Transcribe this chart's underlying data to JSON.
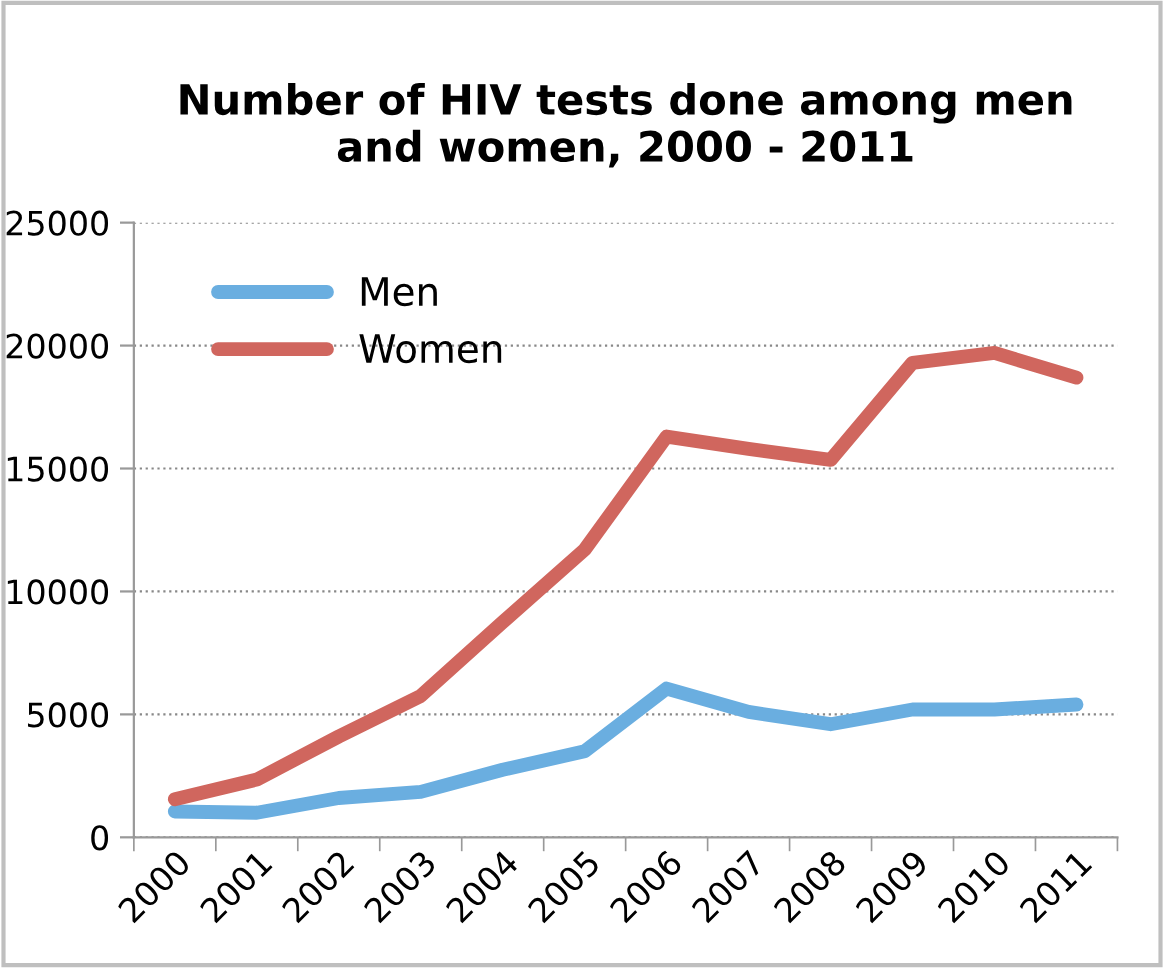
{
  "chart_data": {
    "type": "line",
    "title": "Number of HIV tests done among men\nand women, 2000 - 2011",
    "categories": [
      "2000",
      "2001",
      "2002",
      "2003",
      "2004",
      "2005",
      "2006",
      "2007",
      "2008",
      "2009",
      "2010",
      "2011"
    ],
    "series": [
      {
        "name": "Men",
        "color": "#6aaee0",
        "values": [
          1050,
          1000,
          1600,
          1850,
          2750,
          3500,
          6050,
          5100,
          4600,
          5200,
          5200,
          5400
        ]
      },
      {
        "name": "Women",
        "color": "#d0665e",
        "values": [
          1550,
          2350,
          4100,
          5750,
          8750,
          11700,
          16300,
          15800,
          15350,
          19300,
          19700,
          18700
        ]
      }
    ],
    "ylim": [
      0,
      25000
    ],
    "yticks": [
      0,
      5000,
      10000,
      15000,
      20000,
      25000
    ],
    "grid": "y",
    "legend": "top left",
    "marker": "none",
    "line_style": "solid"
  }
}
